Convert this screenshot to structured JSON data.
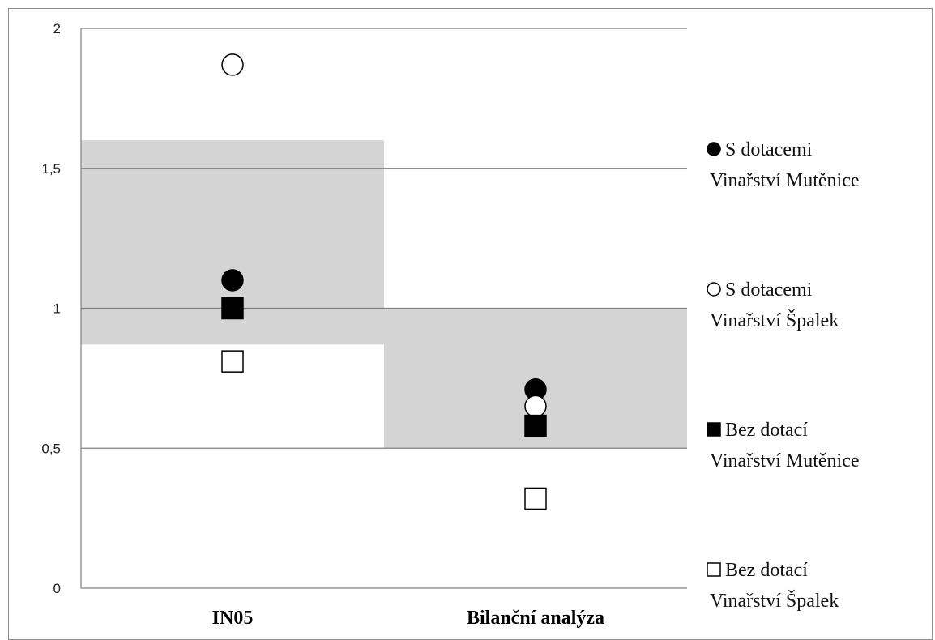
{
  "chart_data": {
    "type": "scatter",
    "categories": [
      "IN05",
      "Bilanční analýza"
    ],
    "ylim": [
      0,
      2
    ],
    "yticks": [
      "0",
      "0,5",
      "1",
      "1,5",
      "2"
    ],
    "ytick_values": [
      0,
      0.5,
      1,
      1.5,
      2
    ],
    "grid": true,
    "legend_position": "right",
    "bands": [
      {
        "category": "IN05",
        "y_from": 0.87,
        "y_to": 1.6,
        "color": "#d4d4d4"
      },
      {
        "category": "Bilanční analýza",
        "y_from": 0.5,
        "y_to": 1.0,
        "color": "#d4d4d4"
      }
    ],
    "series": [
      {
        "legend_line1": "S dotacemi",
        "legend_line2": "Vinařství Mutěnice",
        "marker": "filled-circle",
        "values": [
          1.1,
          0.71
        ]
      },
      {
        "legend_line1": "S dotacemi",
        "legend_line2": "Vinařství Špalek",
        "marker": "open-circle",
        "values": [
          1.87,
          0.65
        ]
      },
      {
        "legend_line1": "Bez dotací",
        "legend_line2": "Vinařství Mutěnice",
        "marker": "filled-square",
        "values": [
          1.0,
          0.58
        ]
      },
      {
        "legend_line1": "Bez dotací",
        "legend_line2": "Vinařství Špalek",
        "marker": "open-square",
        "values": [
          0.81,
          0.32
        ]
      }
    ]
  }
}
